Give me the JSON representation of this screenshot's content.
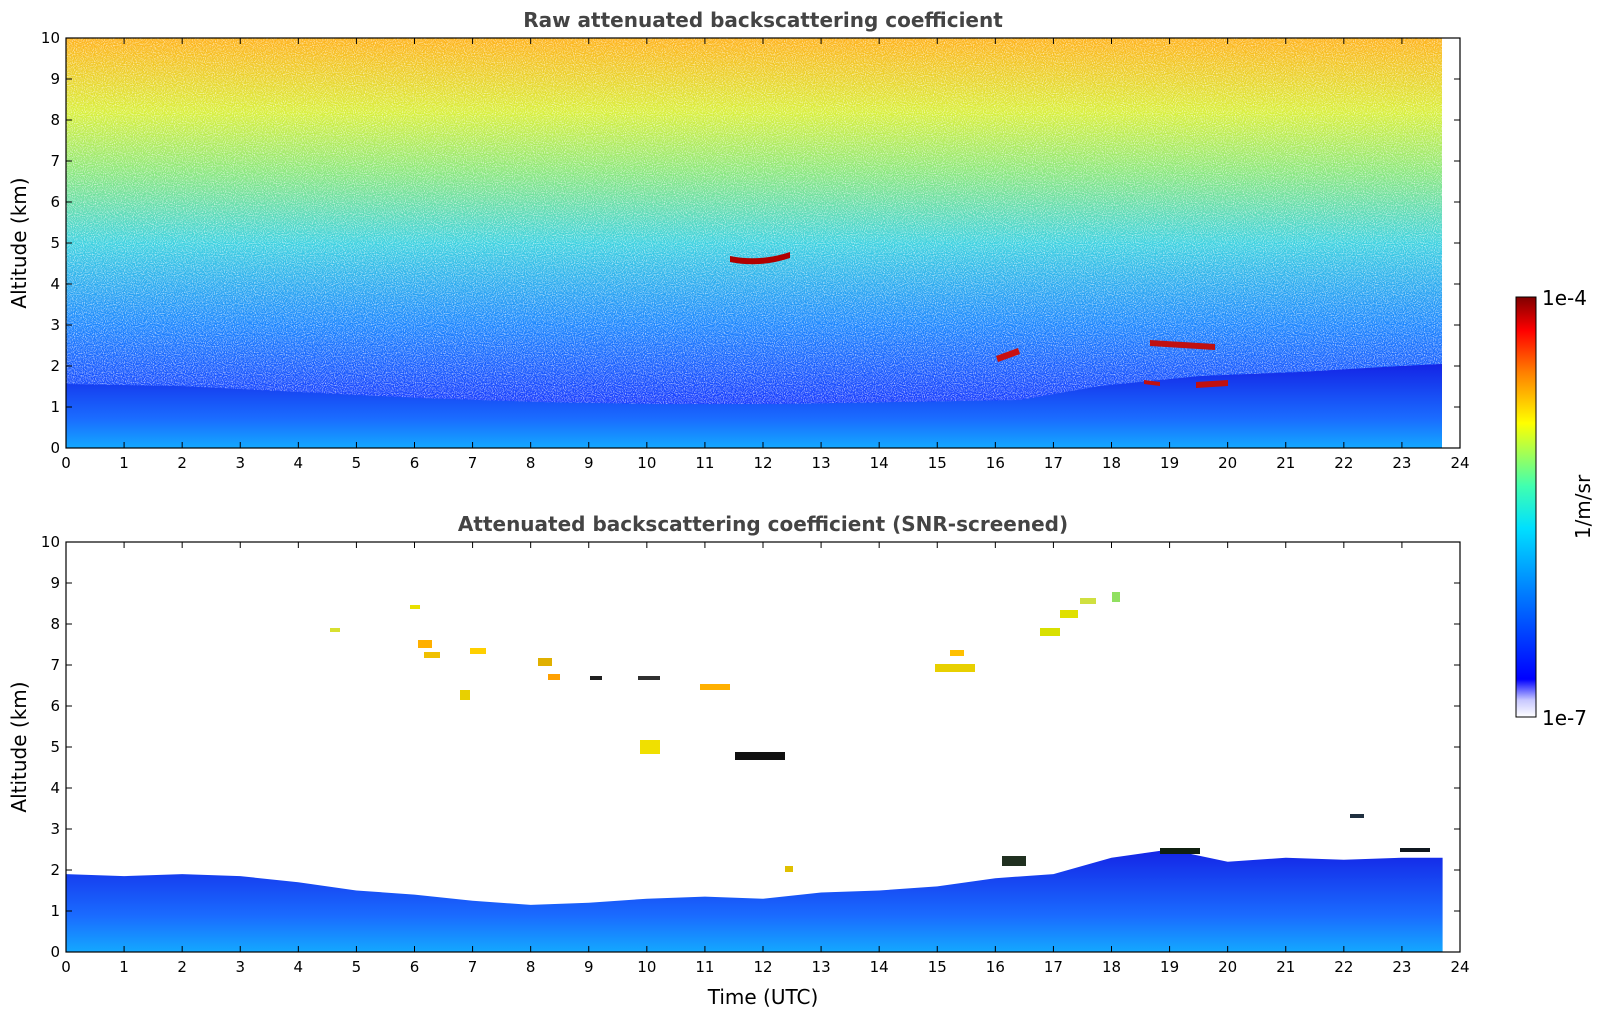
{
  "chart_data": [
    {
      "type": "heatmap",
      "title": "Raw attenuated backscattering coefficient",
      "xlabel": "",
      "ylabel": "Altitude (km)",
      "xlim": [
        0,
        24
      ],
      "ylim": [
        0,
        10
      ],
      "x_ticks": [
        "0",
        "1",
        "2",
        "3",
        "4",
        "5",
        "6",
        "7",
        "8",
        "9",
        "10",
        "11",
        "12",
        "13",
        "14",
        "15",
        "16",
        "17",
        "18",
        "19",
        "20",
        "21",
        "22",
        "23",
        "24"
      ],
      "y_ticks": [
        "0",
        "1",
        "2",
        "3",
        "4",
        "5",
        "6",
        "7",
        "8",
        "9",
        "10"
      ],
      "data_end_hour": 23.7,
      "features": [
        {
          "name": "boundary layer",
          "x_range": [
            0,
            23.7
          ],
          "top_km": [
            0.7,
            0.9,
            1.2,
            1.35,
            1.5,
            1.7,
            1.2
          ]
        },
        {
          "name": "mid-level cloud",
          "x_range": [
            11.5,
            12.6
          ],
          "altitude_km": 4.6,
          "log10_value": -4.1
        },
        {
          "name": "cirrus",
          "x_range": [
            6.0,
            10.2
          ],
          "altitude_km": [
            6.7,
            7.4
          ],
          "log10_value": -4.5
        },
        {
          "name": "low cloud",
          "x_range": [
            18.6,
            19.9
          ],
          "altitude_km": [
            1.5,
            2.6
          ],
          "log10_value": -4.1
        },
        {
          "name": "low cloud",
          "x_range": [
            16.0,
            16.4
          ],
          "altitude_km": 2.2,
          "log10_value": -4.2
        }
      ]
    },
    {
      "type": "heatmap",
      "title": "Attenuated backscattering coefficient (SNR-screened)",
      "xlabel": "Time (UTC)",
      "ylabel": "Altitude (km)",
      "xlim": [
        0,
        24
      ],
      "ylim": [
        0,
        10
      ],
      "x_ticks": [
        "0",
        "1",
        "2",
        "3",
        "4",
        "5",
        "6",
        "7",
        "8",
        "9",
        "10",
        "11",
        "12",
        "13",
        "14",
        "15",
        "16",
        "17",
        "18",
        "19",
        "20",
        "21",
        "22",
        "23",
        "24"
      ],
      "y_ticks": [
        "0",
        "1",
        "2",
        "3",
        "4",
        "5",
        "6",
        "7",
        "8",
        "9",
        "10"
      ],
      "data_end_hour": 23.7,
      "boundary_layer_top_km": [
        [
          0,
          1.9
        ],
        [
          1,
          1.85
        ],
        [
          2,
          1.9
        ],
        [
          3,
          1.85
        ],
        [
          4,
          1.7
        ],
        [
          5,
          1.5
        ],
        [
          6,
          1.4
        ],
        [
          7,
          1.25
        ],
        [
          8,
          1.15
        ],
        [
          9,
          1.2
        ],
        [
          10,
          1.3
        ],
        [
          11,
          1.35
        ],
        [
          12,
          1.3
        ],
        [
          13,
          1.45
        ],
        [
          14,
          1.5
        ],
        [
          15,
          1.6
        ],
        [
          16,
          1.8
        ],
        [
          17,
          1.9
        ],
        [
          18,
          2.3
        ],
        [
          19,
          2.5
        ],
        [
          20,
          2.2
        ],
        [
          21,
          2.3
        ],
        [
          22,
          2.25
        ],
        [
          23,
          2.3
        ],
        [
          23.7,
          2.3
        ]
      ]
    }
  ],
  "colorbar": {
    "label": "1/m/sr",
    "max_label": "1e-4",
    "min_label": "1e-7",
    "log10_range": [
      -7,
      -4
    ],
    "colormap": "jet"
  }
}
